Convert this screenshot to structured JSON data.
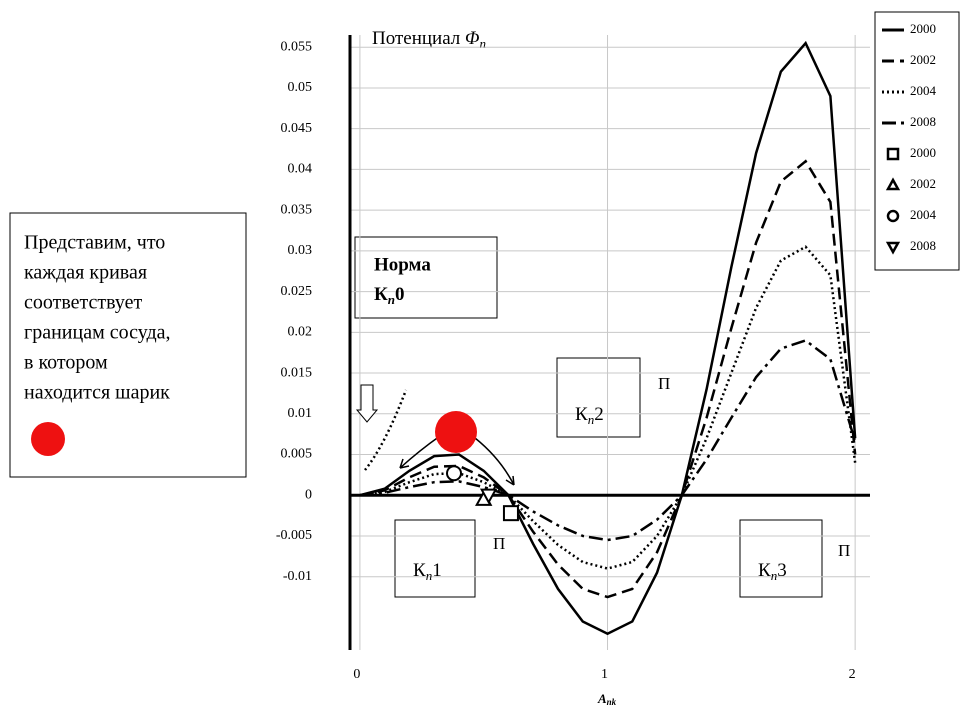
{
  "chart_data": {
    "type": "line",
    "title": "Потенциал",
    "title_symbol": "Φ",
    "title_index": "n",
    "x_label": "A",
    "x_label_index": "nk",
    "xlim": [
      -0.04,
      2.06
    ],
    "ylim": [
      -0.019,
      0.0565
    ],
    "xticks": [
      0,
      1,
      2
    ],
    "yticks": [
      0.055,
      0.05,
      0.045,
      0.04,
      0.035,
      0.03,
      0.025,
      0.02,
      0.015,
      0.01,
      0.005,
      0,
      -0.005,
      -0.01
    ],
    "grid": true,
    "x": [
      0,
      0.1,
      0.2,
      0.3,
      0.4,
      0.5,
      0.6,
      0.7,
      0.8,
      0.9,
      1.0,
      1.1,
      1.2,
      1.3,
      1.4,
      1.5,
      1.6,
      1.7,
      1.8,
      1.9,
      2.0
    ],
    "series": [
      {
        "name": "2000",
        "color": "#000000",
        "dash": "solid",
        "values": [
          0,
          0.0008,
          0.003,
          0.0048,
          0.005,
          0.003,
          0,
          -0.006,
          -0.0115,
          -0.0155,
          -0.017,
          -0.0155,
          -0.0095,
          0,
          0.013,
          0.028,
          0.042,
          0.052,
          0.0555,
          0.049,
          0.007
        ]
      },
      {
        "name": "2002",
        "color": "#000000",
        "dash": "dashed",
        "values": [
          0,
          0.0006,
          0.0022,
          0.0035,
          0.0036,
          0.0022,
          0,
          -0.0045,
          -0.0085,
          -0.0115,
          -0.0125,
          -0.0115,
          -0.007,
          0,
          0.0095,
          0.0205,
          0.031,
          0.0385,
          0.041,
          0.036,
          0.005
        ]
      },
      {
        "name": "2004",
        "color": "#000000",
        "dash": "dotted",
        "values": [
          0,
          0.0004,
          0.0016,
          0.0026,
          0.0027,
          0.0016,
          0,
          -0.0032,
          -0.0061,
          -0.0082,
          -0.009,
          -0.0082,
          -0.005,
          0,
          0.007,
          0.015,
          0.023,
          0.0288,
          0.0305,
          0.027,
          0.004
        ]
      },
      {
        "name": "2008",
        "color": "#000000",
        "dash": "dashdot",
        "values": [
          0,
          0.0003,
          0.001,
          0.0016,
          0.0017,
          0.001,
          0,
          -0.002,
          -0.0037,
          -0.005,
          -0.0055,
          -0.005,
          -0.003,
          0,
          0.0044,
          0.0095,
          0.0145,
          0.018,
          0.019,
          0.0167,
          0.0066
        ]
      }
    ],
    "marker_series": [
      {
        "name": "2000",
        "marker": "square",
        "x": [
          0.61
        ],
        "values": [
          -0.0022
        ]
      },
      {
        "name": "2002",
        "marker": "triangle-up",
        "x": [
          0.5
        ],
        "values": [
          -0.0005
        ]
      },
      {
        "name": "2004",
        "marker": "circle",
        "x": [
          0.38
        ],
        "values": [
          0.0027
        ]
      },
      {
        "name": "2008",
        "marker": "triangle-down",
        "x": [
          0.52
        ],
        "values": [
          0.0
        ]
      }
    ],
    "annotations": {
      "note": [
        "Представим, что",
        "каждая кривая",
        "соответствует",
        "границам сосуда,",
        "в котором",
        "находится шарик"
      ],
      "norm": "Норма",
      "k0": [
        "К",
        "n",
        "0"
      ],
      "k1": [
        "К",
        "n",
        "1"
      ],
      "k2": [
        "К",
        "n",
        "2"
      ],
      "k3": [
        "К",
        "n",
        "3"
      ],
      "p": "П"
    }
  }
}
